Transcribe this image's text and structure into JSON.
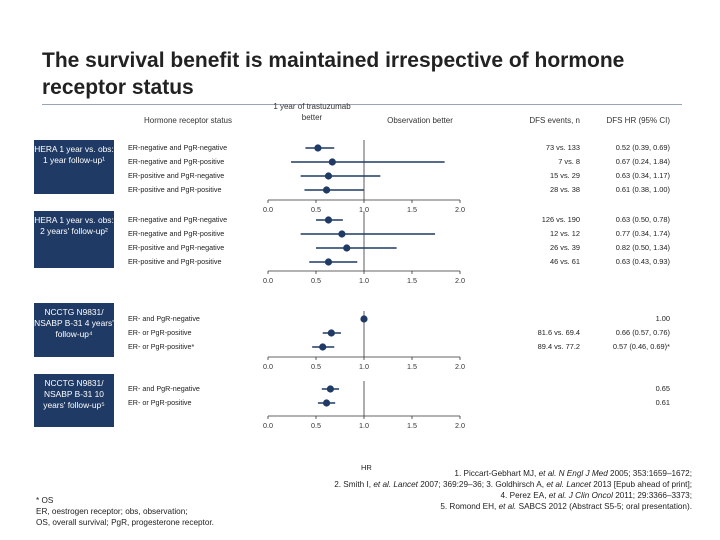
{
  "slide": {
    "title": "The survival benefit is maintained irrespective of hormone receptor status"
  },
  "headers": {
    "hormone_status": "Hormone receptor status",
    "favours_trastuzumab": "1 year of trastuzumab better",
    "favours_observation": "Observation better",
    "dfs_events": "DFS events, n",
    "dfs_hr": "DFS HR (95% CI)"
  },
  "colors": {
    "group_box": "#1f3a64",
    "marker": "#1f3a64",
    "line": "#1f3a64"
  },
  "chart_data": {
    "type": "forest",
    "xlabel": "HR",
    "xlim": [
      0,
      2
    ],
    "xticks": [
      "0.0",
      "0.5",
      "1.0",
      "1.5",
      "2.0"
    ],
    "reference_line": 1.0,
    "groups": [
      {
        "label": "HERA 1 year vs. obs: 1 year follow-up¹",
        "rows": [
          {
            "label": "ER-negative and PgR-negative",
            "events": "73 vs. 133",
            "hr_text": "0.52 (0.39, 0.69)",
            "hr": 0.52,
            "lo": 0.39,
            "hi": 0.69
          },
          {
            "label": "ER-negative and PgR-positive",
            "events": "7 vs. 8",
            "hr_text": "0.67 (0.24, 1.84)",
            "hr": 0.67,
            "lo": 0.24,
            "hi": 1.84
          },
          {
            "label": "ER-positive and PgR-negative",
            "events": "15 vs. 29",
            "hr_text": "0.63 (0.34, 1.17)",
            "hr": 0.63,
            "lo": 0.34,
            "hi": 1.17
          },
          {
            "label": "ER-positive and PgR-positive",
            "events": "28 vs. 38",
            "hr_text": "0.61 (0.38, 1.00)",
            "hr": 0.61,
            "lo": 0.38,
            "hi": 1.0
          }
        ]
      },
      {
        "label": "HERA 1 year vs. obs: 2 years' follow-up²",
        "rows": [
          {
            "label": "ER-negative and PgR-negative",
            "events": "126 vs. 190",
            "hr_text": "0.63 (0.50, 0.78)",
            "hr": 0.63,
            "lo": 0.5,
            "hi": 0.78
          },
          {
            "label": "ER-negative and PgR-positive",
            "events": "12 vs. 12",
            "hr_text": "0.77 (0.34, 1.74)",
            "hr": 0.77,
            "lo": 0.34,
            "hi": 1.74
          },
          {
            "label": "ER-positive and PgR-negative",
            "events": "26 vs. 39",
            "hr_text": "0.82 (0.50, 1.34)",
            "hr": 0.82,
            "lo": 0.5,
            "hi": 1.34
          },
          {
            "label": "ER-positive and PgR-positive",
            "events": "46 vs. 61",
            "hr_text": "0.63 (0.43, 0.93)",
            "hr": 0.63,
            "lo": 0.43,
            "hi": 0.93
          }
        ]
      },
      {
        "label": "NCCTG N9831/ NSABP B-31 4 years' follow-up⁴",
        "rows": [
          {
            "label": "ER- and PgR-negative",
            "events": "",
            "hr_text": "1.00",
            "hr": 1.0,
            "lo": 1.0,
            "hi": 1.0
          },
          {
            "label": "ER- or PgR-positive",
            "events": "81.6 vs. 69.4",
            "hr_text": "0.66 (0.57, 0.76)",
            "hr": 0.66,
            "lo": 0.57,
            "hi": 0.76
          },
          {
            "label": "ER- or PgR-positive*",
            "events": "89.4 vs. 77.2",
            "hr_text": "0.57 (0.46, 0.69)*",
            "hr": 0.57,
            "lo": 0.46,
            "hi": 0.69
          }
        ]
      },
      {
        "label": "NCCTG N9831/ NSABP B-31 10 years' follow-up⁵",
        "rows": [
          {
            "label": "ER- and PgR-negative",
            "events": "",
            "hr_text": "0.65",
            "hr": 0.65,
            "lo": 0.56,
            "hi": 0.74
          },
          {
            "label": "ER- or PgR-positive",
            "events": "",
            "hr_text": "0.61",
            "hr": 0.61,
            "lo": 0.52,
            "hi": 0.7
          }
        ]
      }
    ]
  },
  "footnotes": {
    "line1": "* OS",
    "line2": "ER, oestrogen receptor; obs, observation;",
    "line3": "OS, overall survival; PgR, progesterone receptor."
  },
  "references": {
    "r1a": "1. Piccart-Gebhart MJ, ",
    "r1b": "et al. N Engl J Med",
    "r1c": " 2005; 353:1659–1672;",
    "r2a": "2. Smith I, ",
    "r2b": "et al. Lancet",
    "r2c": " 2007; 369:29–36; 3. Goldhirsch A, ",
    "r2d": "et al. Lancet",
    "r2e": " 2013 [Epub ahead of print];",
    "r3a": "4. Perez EA, ",
    "r3b": "et al. J Clin Oncol",
    "r3c": " 2011; 29:3366–3373;",
    "r4a": "5. Romond EH, ",
    "r4b": "et al.",
    "r4c": " SABCS 2012 (Abstract S5-5; oral presentation)."
  }
}
